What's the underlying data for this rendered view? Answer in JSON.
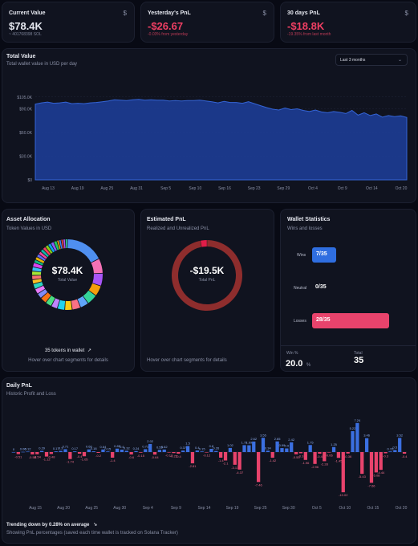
{
  "stats": [
    {
      "title": "Current Value",
      "icon": "dollar-icon",
      "value": "$78.4K",
      "sub": "~ 401768398 SOL",
      "tone": "neutral"
    },
    {
      "title": "Yesterday's PnL",
      "icon": "dollar-icon",
      "value": "-$26.67",
      "sub": "-0.03% from yesterday",
      "tone": "negative"
    },
    {
      "title": "30 days PnL",
      "icon": "dollar-icon",
      "value": "-$18.8K",
      "sub": "-19.35% from last month",
      "tone": "negative"
    }
  ],
  "total_value": {
    "title": "Total Value",
    "subtitle": "Total wallet value in USD per day",
    "range_select": "Last 3 months",
    "chart_data": {
      "type": "area",
      "x_ticks": [
        "Aug 13",
        "Aug 19",
        "Aug 25",
        "Aug 31",
        "Sep 5",
        "Sep 10",
        "Sep 16",
        "Sep 23",
        "Sep 29",
        "Oct 4",
        "Oct 9",
        "Oct 14",
        "Oct 20"
      ],
      "y_ticks": [
        "$0",
        "$30.0K",
        "$60.0K",
        "$90.0K",
        "$105.0K"
      ],
      "ylim": [
        0,
        120000
      ],
      "values": [
        96000,
        97500,
        98500,
        97000,
        97500,
        98500,
        96500,
        97000,
        96500,
        97500,
        98000,
        99000,
        100000,
        101500,
        101000,
        100500,
        101500,
        102000,
        101000,
        101500,
        101000,
        101000,
        100000,
        100500,
        100000,
        100500,
        100500,
        101000,
        100000,
        99000,
        97500,
        99500,
        98000,
        98000,
        97000,
        99000,
        96500,
        94000,
        91500,
        89500,
        88500,
        91000,
        89000,
        90000,
        88000,
        86500,
        88500,
        86000,
        85000,
        86500,
        85500,
        84000,
        88000,
        82000,
        85000,
        81500,
        83500,
        79500,
        81500,
        80000,
        81000,
        79000
      ],
      "color": "#2f5fd0"
    }
  },
  "allocation": {
    "title": "Asset Allocation",
    "subtitle": "Token Values in USD",
    "center_value": "$78.4K",
    "center_label": "Total Value",
    "tokens_count": "35 tokens in wallet",
    "hint": "Hover over chart segments for details",
    "chart_data": {
      "type": "pie",
      "segments": [
        {
          "value": 18,
          "color": "#4f8ff0"
        },
        {
          "value": 7,
          "color": "#f472b6"
        },
        {
          "value": 6,
          "color": "#a855f7"
        },
        {
          "value": 5,
          "color": "#f59e0b"
        },
        {
          "value": 5,
          "color": "#34d399"
        },
        {
          "value": 4,
          "color": "#60a5fa"
        },
        {
          "value": 4,
          "color": "#fb7185"
        },
        {
          "value": 3.5,
          "color": "#facc15"
        },
        {
          "value": 3.5,
          "color": "#22d3ee"
        },
        {
          "value": 3,
          "color": "#c084fc"
        },
        {
          "value": 3,
          "color": "#4ade80"
        },
        {
          "value": 3,
          "color": "#f97316"
        },
        {
          "value": 2.5,
          "color": "#818cf8"
        },
        {
          "value": 2.5,
          "color": "#e879f9"
        },
        {
          "value": 2.5,
          "color": "#2dd4bf"
        },
        {
          "value": 2,
          "color": "#fbbf24"
        },
        {
          "value": 2,
          "color": "#f87171"
        },
        {
          "value": 2,
          "color": "#a3e635"
        },
        {
          "value": 2,
          "color": "#38bdf8"
        },
        {
          "value": 2,
          "color": "#d946ef"
        },
        {
          "value": 1.5,
          "color": "#10b981"
        },
        {
          "value": 1.5,
          "color": "#eab308"
        },
        {
          "value": 1.5,
          "color": "#6366f1"
        },
        {
          "value": 1.5,
          "color": "#ec4899"
        },
        {
          "value": 1.5,
          "color": "#14b8a6"
        },
        {
          "value": 1.5,
          "color": "#f43f5e"
        },
        {
          "value": 1.5,
          "color": "#84cc16"
        },
        {
          "value": 1.5,
          "color": "#0ea5e9"
        },
        {
          "value": 1.5,
          "color": "#8b5cf6"
        },
        {
          "value": 1.5,
          "color": "#22c55e"
        },
        {
          "value": 1,
          "color": "#f59e0b"
        },
        {
          "value": 1,
          "color": "#3b82f6"
        },
        {
          "value": 1,
          "color": "#ef4444"
        },
        {
          "value": 1,
          "color": "#a855f7"
        },
        {
          "value": 1,
          "color": "#34d399"
        }
      ]
    }
  },
  "estimated_pnl": {
    "title": "Estimated PnL",
    "subtitle": "Realized and Unrealized PnL",
    "center_value": "-$19.5K",
    "center_label": "Total PnL",
    "hint": "Hover over chart segments for details",
    "chart_data": {
      "type": "pie",
      "segments": [
        {
          "value": 97,
          "color": "#8e2d2d"
        },
        {
          "value": 3,
          "color": "#e11d48"
        }
      ]
    }
  },
  "wallet_stats": {
    "title": "Wallet Statistics",
    "subtitle": "Wins and losses",
    "rows": [
      {
        "label": "Wins",
        "value": "7/35",
        "fraction": 0.2,
        "color": "#2f6ee0"
      },
      {
        "label": "Neutral",
        "value": "0/35",
        "fraction": 0,
        "color": "#6b7280"
      },
      {
        "label": "Losses",
        "value": "28/35",
        "fraction": 0.8,
        "color": "#e8436c"
      }
    ],
    "win_label": "Win %",
    "win_value": "20.0",
    "win_unit": "%",
    "total_label": "Total",
    "total_value": "35"
  },
  "daily_pnl": {
    "title": "Daily PnL",
    "subtitle": "Historic Profit and Loss",
    "trend_text": "Trending down by 0.28% on average",
    "note": "Showing PnL percentages (saved each time wallet is tracked on Solana Tracker)",
    "chart_data": {
      "type": "bar",
      "x_ticks": [
        "Aug 15",
        "Aug 20",
        "Aug 25",
        "Aug 30",
        "Sep 4",
        "Sep 9",
        "Sep 14",
        "Sep 19",
        "Sep 25",
        "Sep 30",
        "Oct 5",
        "Oct 10",
        "Oct 15",
        "Oct 20"
      ],
      "ylim": [
        -11,
        9
      ],
      "positive_color": "#3b6fe0",
      "negative_color": "#e8436c",
      "values": [
        0,
        -0.51,
        0.06,
        0.12,
        -0.58,
        -0.54,
        0.29,
        -1.12,
        -0.48,
        0.17,
        0.3,
        0.71,
        -1.74,
        0.17,
        -0.4,
        -1.05,
        0.66,
        0.18,
        -0.2,
        0.64,
        0.15,
        -1.4,
        0.85,
        0.6,
        0.32,
        -0.6,
        0.24,
        -0.15,
        0.71,
        2.02,
        -0.64,
        0.55,
        0.62,
        -0.12,
        -0.25,
        -0.4,
        0.37,
        1.5,
        -2.81,
        0.4,
        0.15,
        -0.12,
        0.8,
        0.26,
        -1.4,
        -2.1,
        1.02,
        -3.17,
        -4.37,
        1.72,
        1.69,
        2.62,
        -7.46,
        3.55,
        0.34,
        -1.42,
        2.65,
        0.99,
        0.9,
        2.42,
        -0.55,
        -0.3,
        -1.96,
        1.75,
        -2.96,
        -0.4,
        -2.28,
        -0.06,
        1.25,
        -1.45,
        -10.02,
        -0.36,
        5.22,
        7.24,
        -5.43,
        3.46,
        -7.66,
        -5.08,
        -4.44,
        -0.3,
        0.15,
        0.5,
        3.52,
        -0.4
      ],
      "labels": [
        "0",
        "-0.51",
        "0.06",
        "0.12",
        "-0.58",
        "-0.54",
        "0.29",
        "-1.12",
        "-0.48",
        "0.17",
        "0.3",
        "0.71",
        "-1.74",
        "0.17",
        "-0.4",
        "-1.05",
        "0.66",
        "0.18",
        "-0.2",
        "0.64",
        "0.15",
        "-1.4",
        "0.85",
        "0.6",
        "0.32",
        "-0.6",
        "0.24",
        "-0.15",
        "0.71",
        "2.02",
        "-0.64",
        "0.55",
        "0.62",
        "-0.12",
        "-0.25",
        "-0.4",
        "0.37",
        "1.5",
        "-2.81",
        "0.4",
        "0.15",
        "-0.12",
        "0.8",
        "0.26",
        "-1.4",
        "-2.1",
        "1.02",
        "-3.17",
        "-4.37",
        "1.72",
        "1.69",
        "2.62",
        "-7.46",
        "3.55",
        "0.34",
        "-1.42",
        "2.65",
        "0.99",
        "0.9",
        "2.42",
        "-0.55",
        "-0.3",
        "-1.96",
        "1.75",
        "-2.96",
        "-0.4",
        "-2.28",
        "-0.06",
        "1.25",
        "-1.45",
        "-10.02",
        "-0.36",
        "5.22",
        "7.24",
        "-5.43",
        "3.46",
        "-7.66",
        "-5.08",
        "-4.44",
        "-0.3",
        "0.15",
        "0.5",
        "3.52",
        "-0.4"
      ]
    }
  }
}
